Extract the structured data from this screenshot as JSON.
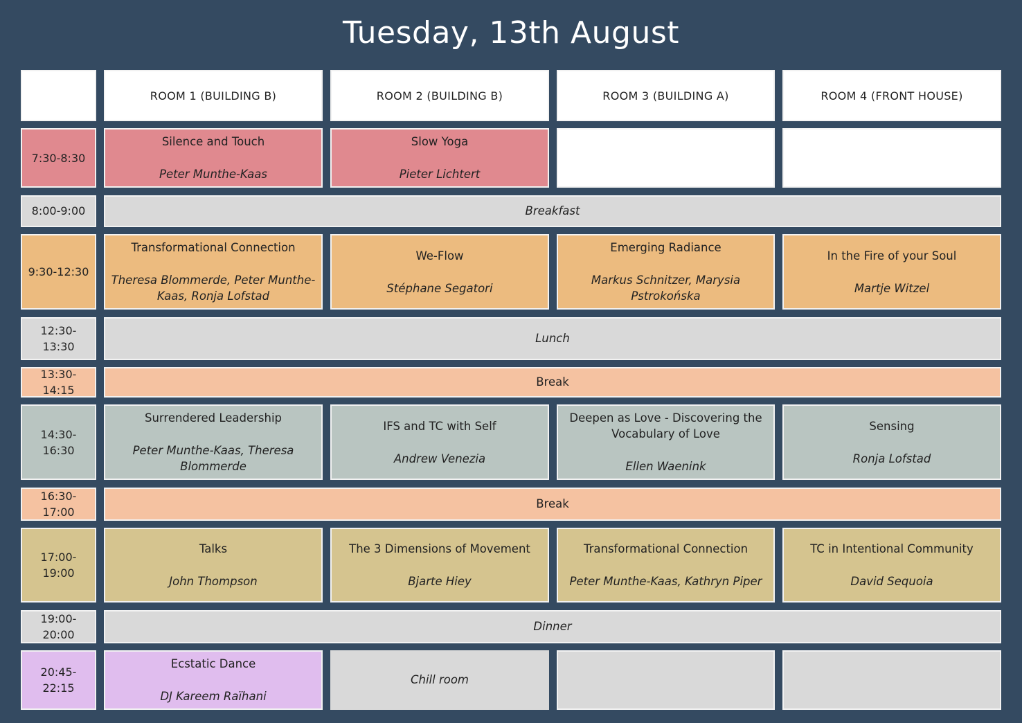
{
  "title": "Tuesday, 13th August",
  "colors": {
    "background": "#344a61",
    "white": "#ffffff",
    "morning": "#e0898f",
    "meal": "#d9d9d9",
    "session_orange": "#ecbb7f",
    "break": "#f5c2a1",
    "session_sage": "#b9c5c1",
    "session_khaki": "#d5c48f",
    "evening": "#e0bdee"
  },
  "rooms": [
    "ROOM 1 (BUILDING B)",
    "ROOM 2 (BUILDING B)",
    "ROOM 3 (BUILDING A)",
    "ROOM 4 (FRONT HOUSE)"
  ],
  "rows": [
    {
      "time": "7:30-8:30",
      "color": "morning",
      "cells": [
        {
          "title": "Silence and Touch",
          "people": "Peter Munthe-Kaas"
        },
        {
          "title": "Slow Yoga",
          "people": "Pieter Lichtert"
        },
        {
          "empty": true,
          "color": "white"
        },
        {
          "empty": true,
          "color": "white"
        }
      ]
    },
    {
      "time": "8:00-9:00",
      "color": "meal",
      "span": {
        "label": "Breakfast",
        "italic": true
      }
    },
    {
      "time": "9:30-12:30",
      "color": "session_orange",
      "cells": [
        {
          "title": "Transformational Connection",
          "people": "Theresa Blommerde, Peter Munthe-Kaas, Ronja Lofstad"
        },
        {
          "title": "We-Flow",
          "people": "Stéphane Segatori"
        },
        {
          "title": "Emerging Radiance",
          "people": "Markus Schnitzer, Marysia Pstrokońska"
        },
        {
          "title": "In the Fire of your Soul",
          "people": "Martje Witzel"
        }
      ]
    },
    {
      "time": "12:30-13:30",
      "color": "meal",
      "span": {
        "label": "Lunch",
        "italic": true
      }
    },
    {
      "time": "13:30-14:15",
      "color": "break",
      "span": {
        "label": "Break",
        "italic": false
      }
    },
    {
      "time": "14:30-16:30",
      "color": "session_sage",
      "cells": [
        {
          "title": "Surrendered Leadership",
          "people": "Peter Munthe-Kaas, Theresa Blommerde"
        },
        {
          "title": "IFS and TC with Self",
          "people": "Andrew Venezia"
        },
        {
          "title": "Deepen as Love - Discovering the Vocabulary of Love",
          "people": "Ellen Waenink"
        },
        {
          "title": "Sensing",
          "people": "Ronja Lofstad"
        }
      ]
    },
    {
      "time": "16:30-17:00",
      "color": "break",
      "span": {
        "label": "Break",
        "italic": false
      }
    },
    {
      "time": "17:00-19:00",
      "color": "session_khaki",
      "cells": [
        {
          "title": "Talks",
          "people": "John Thompson"
        },
        {
          "title": "The 3 Dimensions of Movement",
          "people": "Bjarte Hiey"
        },
        {
          "title": "Transformational Connection",
          "people": "Peter Munthe-Kaas, Kathryn Piper"
        },
        {
          "title": "TC in Intentional Community",
          "people": "David Sequoia"
        }
      ]
    },
    {
      "time": "19:00-20:00",
      "color": "meal",
      "span": {
        "label": "Dinner",
        "italic": true
      }
    },
    {
      "time": "20:45-22:15",
      "color": "evening",
      "cells": [
        {
          "title": "Ecstatic Dance",
          "people": "DJ Kareem Raïhani"
        },
        {
          "people": "Chill room",
          "color": "meal",
          "noborder": true
        },
        {
          "empty": true,
          "color": "meal"
        },
        {
          "empty": true,
          "color": "meal"
        }
      ]
    }
  ]
}
